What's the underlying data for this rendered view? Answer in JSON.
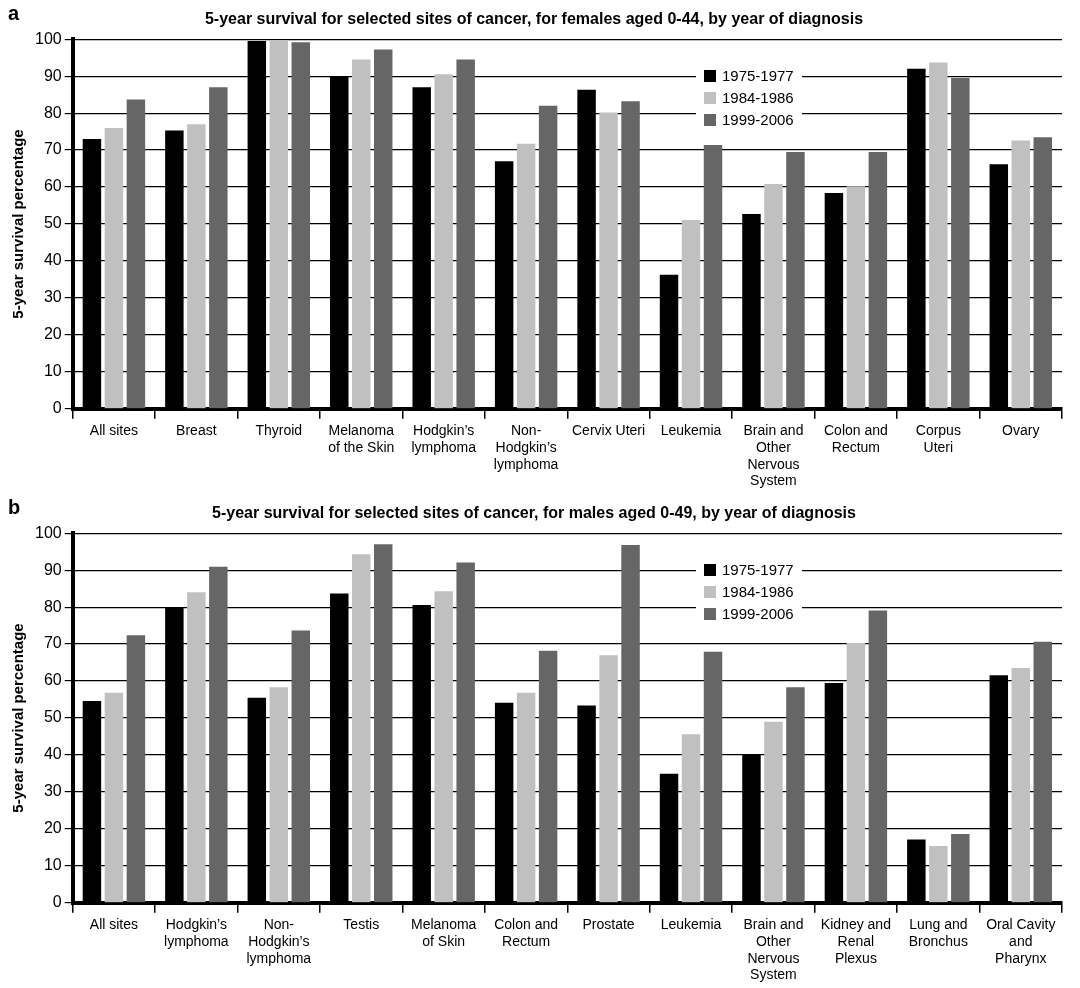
{
  "chart_data": [
    {
      "type": "bar",
      "title": "5-year survival for selected sites of cancer, for females aged 0-44, by year of diagnosis",
      "ylabel": "5-year survival percentage",
      "annotations": [
        "a"
      ],
      "categories": [
        "All sites",
        "Breast",
        "Thyroid",
        "Melanoma of the Skin",
        "Hodgkin’s lymphoma",
        "Non-Hodgkin’s lymphoma",
        "Cervix Uteri",
        "Leukemia",
        "Brain and Other Nervous System",
        "Colon and Rectum",
        "Corpus Uteri",
        "Ovary"
      ],
      "series": [
        {
          "name": "1975-1977",
          "color": "#000000",
          "values": [
            73,
            75.3,
            99.5,
            90,
            87,
            67,
            86.3,
            36.3,
            52.7,
            58.4,
            92,
            66.2
          ]
        },
        {
          "name": "1984-1986",
          "color": "#c0c0c0",
          "values": [
            76,
            77,
            99.5,
            94.5,
            90.5,
            71.7,
            80.2,
            51.1,
            60.8,
            60.2,
            93.7,
            72.6
          ]
        },
        {
          "name": "1999-2006",
          "color": "#666666",
          "values": [
            83.7,
            87,
            99.2,
            97.2,
            94.5,
            82,
            83.2,
            71.4,
            69.5,
            69.5,
            89.5,
            73.5
          ]
        }
      ],
      "ylim": [
        0,
        100
      ],
      "yticks": [
        0,
        10,
        20,
        30,
        40,
        50,
        60,
        70,
        80,
        90,
        100
      ],
      "grid": "y",
      "legend": "top right"
    },
    {
      "type": "bar",
      "title": "5-year survival for selected sites of cancer, for males aged 0-49, by year of diagnosis",
      "ylabel": "5-year survival percentage",
      "annotations": [
        "b"
      ],
      "categories": [
        "All sites",
        "Hodgkin’s lymphoma",
        "Non-Hodgkin’s lymphoma",
        "Testis",
        "Melanoma of Skin",
        "Colon and Rectum",
        "Prostate",
        "Leukemia",
        "Brain and Other Nervous System",
        "Kidney and Renal Plexus",
        "Lung and Bronchus",
        "Oral Cavity and Pharynx"
      ],
      "series": [
        {
          "name": "1975-1977",
          "color": "#000000",
          "values": [
            54.6,
            80,
            55.5,
            83.7,
            80.6,
            54.1,
            53.4,
            34.9,
            40,
            59.5,
            17.1,
            61.6
          ]
        },
        {
          "name": "1984-1986",
          "color": "#c0c0c0",
          "values": [
            56.8,
            84,
            58.3,
            94.3,
            84.3,
            56.8,
            67,
            45.6,
            49,
            70.3,
            15.4,
            63.5
          ]
        },
        {
          "name": "1999-2006",
          "color": "#666666",
          "values": [
            72.4,
            90.9,
            73.7,
            97,
            92.1,
            68.2,
            96.8,
            67.9,
            58.3,
            79.1,
            18.6,
            70.6
          ]
        }
      ],
      "ylim": [
        0,
        100
      ],
      "yticks": [
        0,
        10,
        20,
        30,
        40,
        50,
        60,
        70,
        80,
        90,
        100
      ],
      "grid": "y",
      "legend": "top right"
    }
  ]
}
